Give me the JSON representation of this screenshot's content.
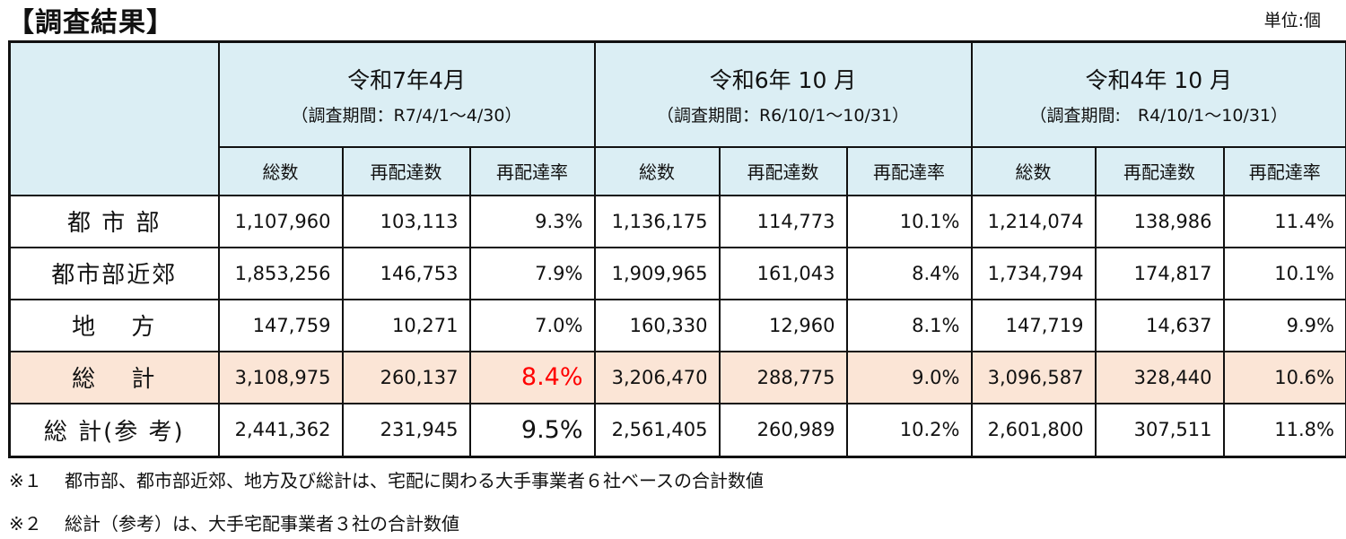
{
  "title": "【調査結果】",
  "unit": "単位:個",
  "chart_data": {
    "type": "table",
    "periods": [
      {
        "label": "令和7年4月",
        "range": "（調査期間：R7/4/1～4/30）"
      },
      {
        "label": "令和6年 10 月",
        "range": "（調査期間：R6/10/1～10/31）"
      },
      {
        "label": "令和4年 10 月",
        "range": "（調査期間:　R4/10/1～10/31）"
      }
    ],
    "columns": [
      "総数",
      "再配達数",
      "再配達率"
    ],
    "rows": [
      {
        "label": "都 市 部",
        "values": [
          "1,107,960",
          "103,113",
          "9.3%",
          "1,136,175",
          "114,773",
          "10.1%",
          "1,214,074",
          "138,986",
          "11.4%"
        ]
      },
      {
        "label": "都市部近郊",
        "values": [
          "1,853,256",
          "146,753",
          "7.9%",
          "1,909,965",
          "161,043",
          "8.4%",
          "1,734,794",
          "174,817",
          "10.1%"
        ]
      },
      {
        "label": "地　 方",
        "values": [
          "147,759",
          "10,271",
          "7.0%",
          "160,330",
          "12,960",
          "8.1%",
          "147,719",
          "14,637",
          "9.9%"
        ]
      },
      {
        "label": "総　 計",
        "values": [
          "3,108,975",
          "260,137",
          "8.4%",
          "3,206,470",
          "288,775",
          "9.0%",
          "3,096,587",
          "328,440",
          "10.6%"
        ]
      },
      {
        "label": "総 計(参 考)",
        "values": [
          "2,441,362",
          "231,945",
          "9.5%",
          "2,561,405",
          "260,989",
          "10.2%",
          "2,601,800",
          "307,511",
          "11.8%"
        ]
      }
    ],
    "highlight_color": "#ff0000",
    "total_row_color": "#fbe5d6",
    "header_color": "#dbeef4"
  },
  "notes": [
    {
      "mark": "※１",
      "text": "都市部、都市部近郊、地方及び総計は、宅配に関わる大手事業者６社ベースの合計数値"
    },
    {
      "mark": "※２",
      "text": "総計（参考）は、大手宅配事業者３社の合計数値"
    }
  ]
}
